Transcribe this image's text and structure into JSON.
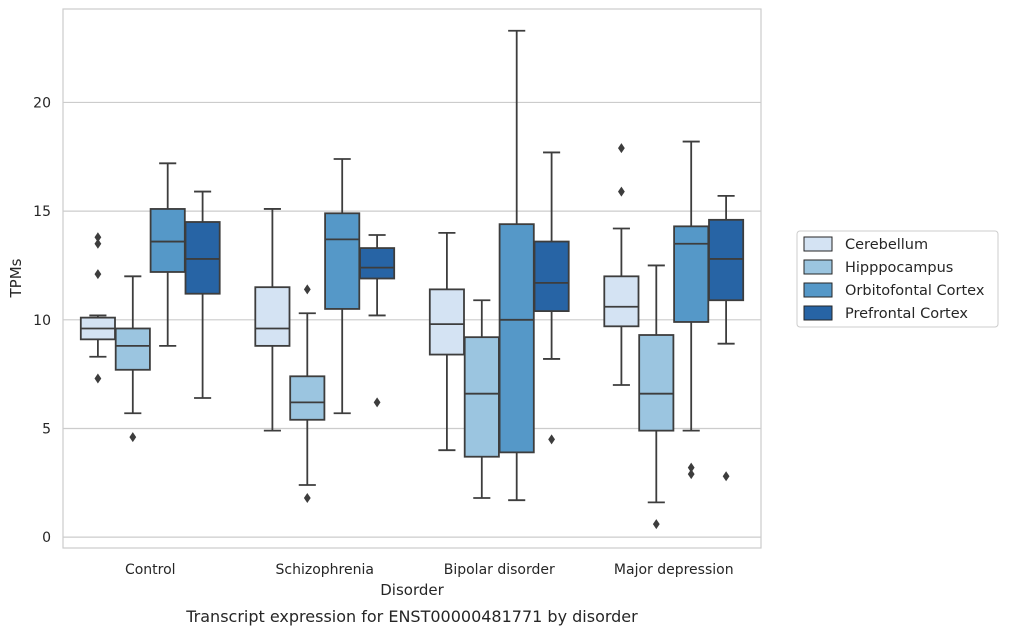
{
  "caption": "Transcript expression for ENST00000481771 by disorder",
  "chart_data": {
    "type": "box",
    "title": "",
    "xlabel": "Disorder",
    "ylabel": "TPMs",
    "ylim": [
      -0.5,
      24.3
    ],
    "yticks": [
      0,
      5,
      10,
      15,
      20
    ],
    "grid": "horizontal",
    "legend_position": "right",
    "categories": [
      "Control",
      "Schizophrenia",
      "Bipolar disorder",
      "Major depression"
    ],
    "series": [
      {
        "name": "Cerebellum",
        "color": "#d4e3f3",
        "boxes": [
          {
            "whisker_low": 8.3,
            "q1": 9.1,
            "median": 9.6,
            "q3": 10.1,
            "whisker_high": 10.2,
            "outliers": [
              7.3,
              12.1,
              13.5,
              13.8
            ]
          },
          {
            "whisker_low": 4.9,
            "q1": 8.8,
            "median": 9.6,
            "q3": 11.5,
            "whisker_high": 15.1,
            "outliers": []
          },
          {
            "whisker_low": 4.0,
            "q1": 8.4,
            "median": 9.8,
            "q3": 11.4,
            "whisker_high": 14.0,
            "outliers": []
          },
          {
            "whisker_low": 7.0,
            "q1": 9.7,
            "median": 10.6,
            "q3": 12.0,
            "whisker_high": 14.2,
            "outliers": [
              15.9,
              17.9
            ]
          }
        ]
      },
      {
        "name": "Hipppocampus",
        "color": "#9bc5e0",
        "boxes": [
          {
            "whisker_low": 5.7,
            "q1": 7.7,
            "median": 8.8,
            "q3": 9.6,
            "whisker_high": 12.0,
            "outliers": [
              4.6
            ]
          },
          {
            "whisker_low": 2.4,
            "q1": 5.4,
            "median": 6.2,
            "q3": 7.4,
            "whisker_high": 10.3,
            "outliers": [
              1.8,
              11.4
            ]
          },
          {
            "whisker_low": 1.8,
            "q1": 3.7,
            "median": 6.6,
            "q3": 9.2,
            "whisker_high": 10.9,
            "outliers": []
          },
          {
            "whisker_low": 1.6,
            "q1": 4.9,
            "median": 6.6,
            "q3": 9.3,
            "whisker_high": 12.5,
            "outliers": [
              0.6
            ]
          }
        ]
      },
      {
        "name": "Orbitofontal Cortex",
        "color": "#5598c8",
        "boxes": [
          {
            "whisker_low": 8.8,
            "q1": 12.2,
            "median": 13.6,
            "q3": 15.1,
            "whisker_high": 17.2,
            "outliers": []
          },
          {
            "whisker_low": 5.7,
            "q1": 10.5,
            "median": 13.7,
            "q3": 14.9,
            "whisker_high": 17.4,
            "outliers": []
          },
          {
            "whisker_low": 1.7,
            "q1": 3.9,
            "median": 10.0,
            "q3": 14.4,
            "whisker_high": 23.3,
            "outliers": []
          },
          {
            "whisker_low": 4.9,
            "q1": 9.9,
            "median": 13.5,
            "q3": 14.3,
            "whisker_high": 18.2,
            "outliers": [
              2.9,
              3.2
            ]
          }
        ]
      },
      {
        "name": "Prefrontal Cortex",
        "color": "#2764a5",
        "boxes": [
          {
            "whisker_low": 6.4,
            "q1": 11.2,
            "median": 12.8,
            "q3": 14.5,
            "whisker_high": 15.9,
            "outliers": []
          },
          {
            "whisker_low": 10.2,
            "q1": 11.9,
            "median": 12.4,
            "q3": 13.3,
            "whisker_high": 13.9,
            "outliers": [
              6.2
            ]
          },
          {
            "whisker_low": 8.2,
            "q1": 10.4,
            "median": 11.7,
            "q3": 13.6,
            "whisker_high": 17.7,
            "outliers": [
              4.5
            ]
          },
          {
            "whisker_low": 8.9,
            "q1": 10.9,
            "median": 12.8,
            "q3": 14.6,
            "whisker_high": 15.7,
            "outliers": [
              2.8
            ]
          }
        ]
      }
    ]
  }
}
